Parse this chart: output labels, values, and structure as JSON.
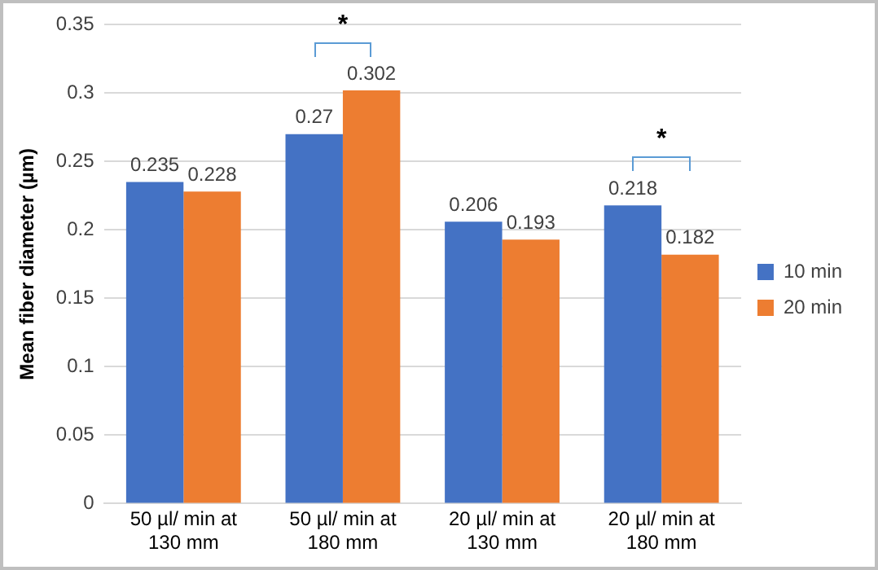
{
  "chart_data": {
    "type": "bar",
    "ylabel": "Mean fiber diameter (µm)",
    "categories": [
      "50 µl/ min at 130 mm",
      "50 µl/ min at 180 mm",
      "20 µl/ min  at 130 mm",
      "20 µl/ min at 180 mm"
    ],
    "series": [
      {
        "name": "10 min",
        "color": "#4472c4",
        "values": [
          0.235,
          0.27,
          0.206,
          0.218
        ]
      },
      {
        "name": "20 min",
        "color": "#ed7d31",
        "values": [
          0.228,
          0.302,
          0.193,
          0.182
        ]
      }
    ],
    "ylim": [
      0,
      0.35
    ],
    "yticks": [
      0,
      0.05,
      0.1,
      0.15,
      0.2,
      0.25,
      0.3,
      0.35
    ],
    "grid": "y",
    "legend": "right",
    "data_labels": true,
    "annotations": [
      "*",
      "*"
    ]
  }
}
